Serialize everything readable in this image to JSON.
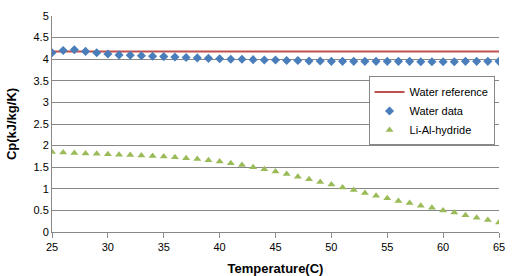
{
  "chart_data": {
    "type": "scatter",
    "x_label": "Temperature(C)",
    "y_label": "Cp(kJ/kg/K)",
    "x": [
      25,
      26,
      27,
      28,
      29,
      30,
      31,
      32,
      33,
      34,
      35,
      36,
      37,
      38,
      39,
      40,
      41,
      42,
      43,
      44,
      45,
      46,
      47,
      48,
      49,
      50,
      51,
      52,
      53,
      54,
      55,
      56,
      57,
      58,
      59,
      60,
      61,
      62,
      63,
      64,
      65
    ],
    "series": [
      {
        "name": "Water reference",
        "type": "line",
        "color": "#c0504d",
        "line_style": "solid",
        "values": [
          4.18,
          4.18,
          4.18,
          4.18,
          4.18,
          4.18,
          4.18,
          4.18,
          4.18,
          4.18,
          4.18,
          4.18,
          4.18,
          4.18,
          4.18,
          4.18,
          4.18,
          4.18,
          4.18,
          4.18,
          4.18,
          4.18,
          4.18,
          4.18,
          4.18,
          4.18,
          4.18,
          4.18,
          4.18,
          4.18,
          4.18,
          4.18,
          4.18,
          4.18,
          4.18,
          4.18,
          4.18,
          4.18,
          4.18,
          4.18,
          4.18
        ]
      },
      {
        "name": "Water data",
        "type": "scatter",
        "color": "#4a7ebb",
        "marker": "diamond",
        "values": [
          4.15,
          4.2,
          4.22,
          4.18,
          4.15,
          4.12,
          4.1,
          4.09,
          4.08,
          4.07,
          4.06,
          4.05,
          4.04,
          4.03,
          4.02,
          4.01,
          4.0,
          4.0,
          3.99,
          3.98,
          3.98,
          3.97,
          3.97,
          3.96,
          3.96,
          3.95,
          3.95,
          3.95,
          3.95,
          3.95,
          3.95,
          3.95,
          3.95,
          3.94,
          3.94,
          3.94,
          3.94,
          3.95,
          3.95,
          3.95,
          3.95
        ]
      },
      {
        "name": "Li-Al-hydride",
        "type": "scatter",
        "color": "#9bbb59",
        "marker": "triangle",
        "values": [
          1.85,
          1.84,
          1.83,
          1.82,
          1.81,
          1.8,
          1.79,
          1.78,
          1.77,
          1.76,
          1.75,
          1.73,
          1.71,
          1.69,
          1.66,
          1.63,
          1.59,
          1.55,
          1.5,
          1.45,
          1.4,
          1.34,
          1.28,
          1.22,
          1.16,
          1.1,
          1.03,
          0.97,
          0.9,
          0.84,
          0.78,
          0.72,
          0.67,
          0.61,
          0.56,
          0.5,
          0.45,
          0.39,
          0.33,
          0.28,
          0.22
        ]
      }
    ],
    "xlim": [
      25,
      65
    ],
    "xticks": [
      25,
      30,
      35,
      40,
      45,
      50,
      55,
      60,
      65
    ],
    "ylim": [
      0,
      5
    ],
    "yticks": [
      0,
      0.5,
      1,
      1.5,
      2,
      2.5,
      3,
      3.5,
      4,
      4.5,
      5
    ],
    "grid": true,
    "legend": "right"
  }
}
